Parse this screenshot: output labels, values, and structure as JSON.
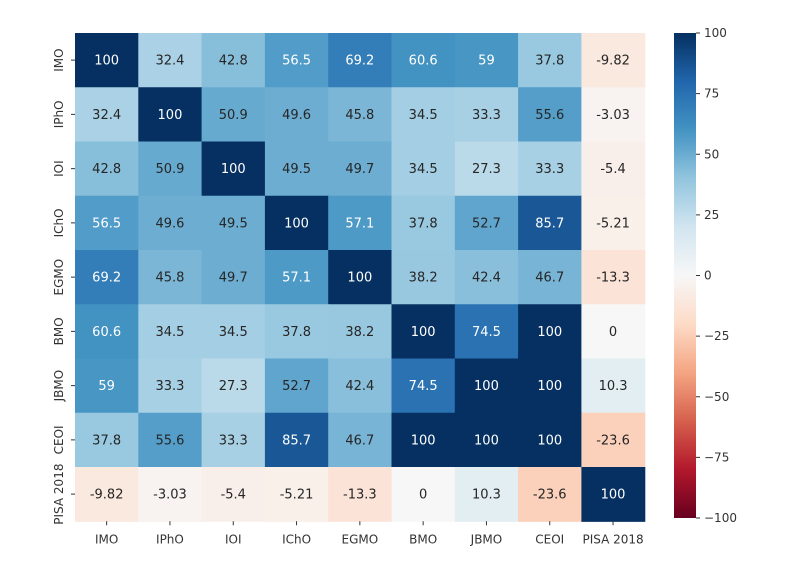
{
  "chart_data": {
    "type": "heatmap",
    "title": "",
    "xlabel": "",
    "ylabel": "",
    "x_categories": [
      "IMO",
      "IPhO",
      "IOI",
      "IChO",
      "EGMO",
      "BMO",
      "JBMO",
      "CEOI",
      "PISA 2018"
    ],
    "y_categories": [
      "IMO",
      "IPhO",
      "IOI",
      "IChO",
      "EGMO",
      "BMO",
      "JBMO",
      "CEOI",
      "PISA 2018"
    ],
    "values": [
      [
        100,
        32.4,
        42.8,
        56.5,
        69.2,
        60.6,
        59,
        37.8,
        -9.82
      ],
      [
        32.4,
        100,
        50.9,
        49.6,
        45.8,
        34.5,
        33.3,
        55.6,
        -3.03
      ],
      [
        42.8,
        50.9,
        100,
        49.5,
        49.7,
        34.5,
        27.3,
        33.3,
        -5.4
      ],
      [
        56.5,
        49.6,
        49.5,
        100,
        57.1,
        37.8,
        52.7,
        85.7,
        -5.21
      ],
      [
        69.2,
        45.8,
        49.7,
        57.1,
        100,
        38.2,
        42.4,
        46.7,
        -13.3
      ],
      [
        60.6,
        34.5,
        34.5,
        37.8,
        38.2,
        100,
        74.5,
        100,
        0
      ],
      [
        59,
        33.3,
        27.3,
        52.7,
        42.4,
        74.5,
        100,
        100,
        10.3
      ],
      [
        37.8,
        55.6,
        33.3,
        85.7,
        46.7,
        100,
        100,
        100,
        -23.6
      ],
      [
        -9.82,
        -3.03,
        -5.4,
        -5.21,
        -13.3,
        0,
        10.3,
        -23.6,
        100
      ]
    ],
    "value_labels": [
      [
        "100",
        "32.4",
        "42.8",
        "56.5",
        "69.2",
        "60.6",
        "59",
        "37.8",
        "-9.82"
      ],
      [
        "32.4",
        "100",
        "50.9",
        "49.6",
        "45.8",
        "34.5",
        "33.3",
        "55.6",
        "-3.03"
      ],
      [
        "42.8",
        "50.9",
        "100",
        "49.5",
        "49.7",
        "34.5",
        "27.3",
        "33.3",
        "-5.4"
      ],
      [
        "56.5",
        "49.6",
        "49.5",
        "100",
        "57.1",
        "37.8",
        "52.7",
        "85.7",
        "-5.21"
      ],
      [
        "69.2",
        "45.8",
        "49.7",
        "57.1",
        "100",
        "38.2",
        "42.4",
        "46.7",
        "-13.3"
      ],
      [
        "60.6",
        "34.5",
        "34.5",
        "37.8",
        "38.2",
        "100",
        "74.5",
        "100",
        "0"
      ],
      [
        "59",
        "33.3",
        "27.3",
        "52.7",
        "42.4",
        "74.5",
        "100",
        "100",
        "10.3"
      ],
      [
        "37.8",
        "55.6",
        "33.3",
        "85.7",
        "46.7",
        "100",
        "100",
        "100",
        "-23.6"
      ],
      [
        "-9.82",
        "-3.03",
        "-5.4",
        "-5.21",
        "-13.3",
        "0",
        "10.3",
        "-23.6",
        "100"
      ]
    ],
    "colormap": "RdBu",
    "vmin": -100,
    "vmax": 100,
    "colorbar_ticks": [
      100,
      75,
      50,
      25,
      0,
      -25,
      -50,
      -75,
      -100
    ],
    "colorbar_tick_labels": [
      "100",
      "75",
      "50",
      "25",
      "0",
      "−25",
      "−50",
      "−75",
      "−100"
    ],
    "colorbar_position": "right",
    "grid": false
  }
}
